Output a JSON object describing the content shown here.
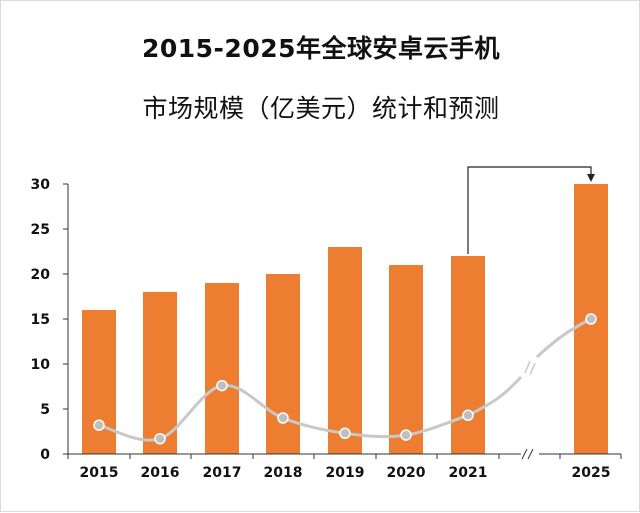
{
  "title": {
    "line1": "2015-2025年全球安卓云手机",
    "line2": "市场规模（亿美元）统计和预测"
  },
  "colors": {
    "bar": "#ED7D31",
    "line": "#C8C8C8",
    "marker": "#BFBFBF",
    "axis": "#333333"
  },
  "chart_data": {
    "type": "bar",
    "title": "2015-2025年全球安卓云手机市场规模（亿美元）统计和预测",
    "categories": [
      "2015",
      "2016",
      "2017",
      "2018",
      "2019",
      "2020",
      "2021",
      "2025"
    ],
    "values": [
      16,
      18,
      19,
      20,
      23,
      21,
      22,
      30
    ],
    "ylim": [
      0,
      30
    ],
    "yticks": [
      0,
      5,
      10,
      15,
      20,
      25,
      30
    ],
    "xlabel": "",
    "ylabel": "",
    "grid": false,
    "axis_break": "between 2021 and 2025",
    "annotation": "arrow from 2021 bar to 2025 bar",
    "series": [
      {
        "type": "bar",
        "values": [
          16,
          18,
          19,
          20,
          23,
          21,
          22,
          30
        ]
      },
      {
        "type": "line",
        "values": [
          3.2,
          1.7,
          7.6,
          4.0,
          2.3,
          2.1,
          4.3,
          15.0
        ]
      }
    ]
  }
}
